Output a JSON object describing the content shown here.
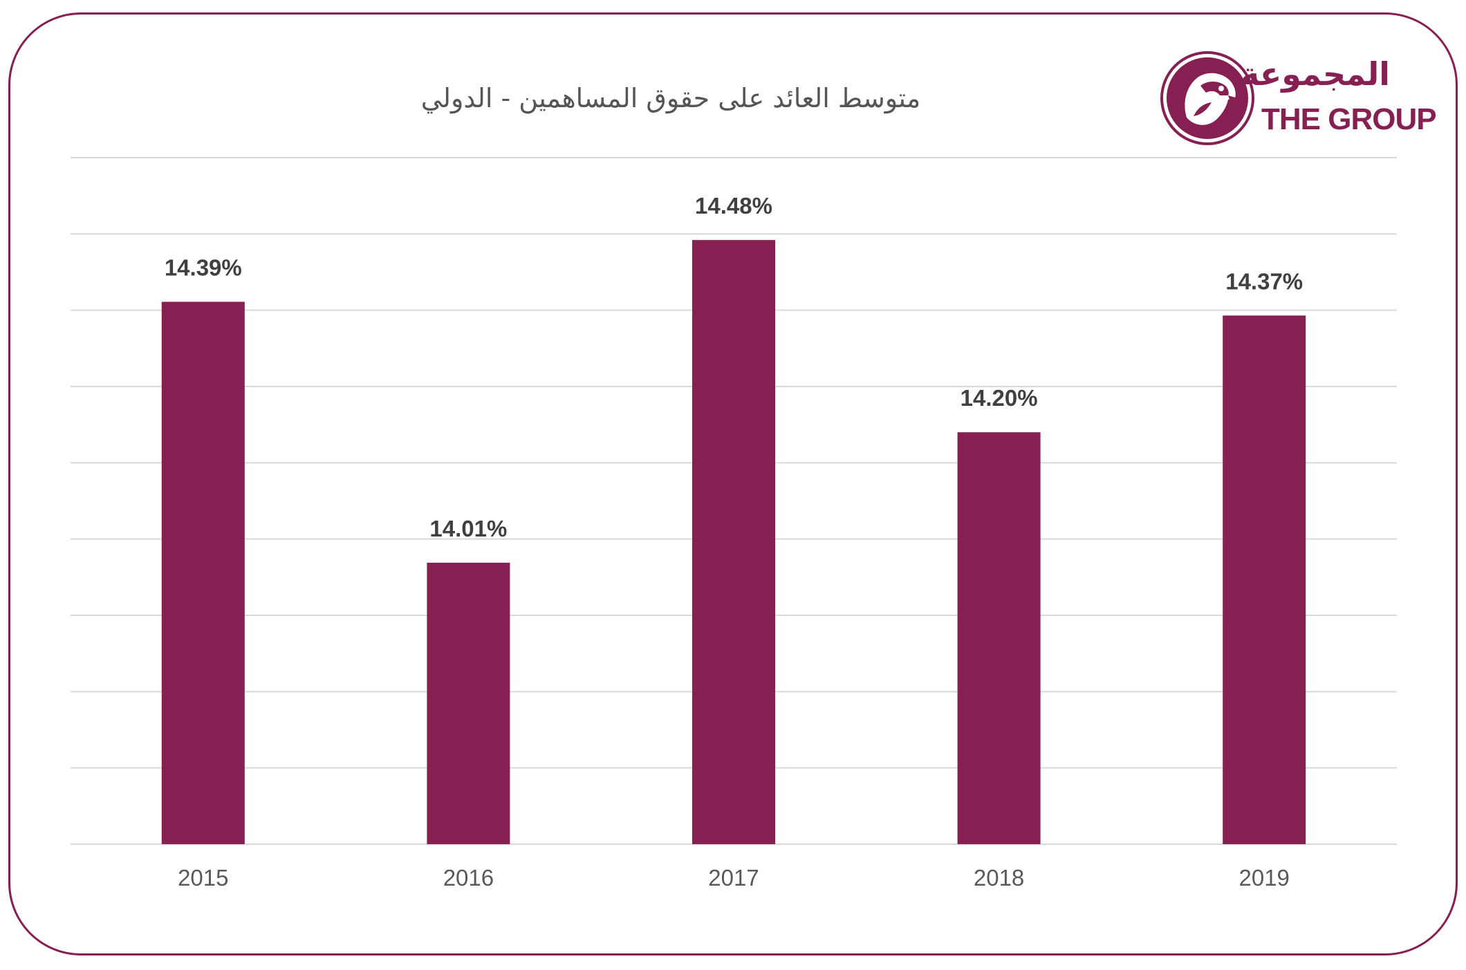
{
  "logo": {
    "arabic_text": "المجموعة",
    "english_text": "THE GROUP"
  },
  "colors": {
    "brand": "#861f52",
    "bar": "#861f52",
    "grid": "#d9d9d9",
    "label_text": "#404040"
  },
  "chart_data": {
    "type": "bar",
    "title": "متوسط العائد على حقوق المساهمين - الدولي",
    "xlabel": "",
    "ylabel": "",
    "categories": [
      "2015",
      "2016",
      "2017",
      "2018",
      "2019"
    ],
    "values": [
      14.39,
      14.01,
      14.48,
      14.2,
      14.37
    ],
    "value_labels": [
      "14.39%",
      "14.01%",
      "14.48%",
      "14.20%",
      "14.37%"
    ],
    "ylim": [
      13.6,
      14.6
    ],
    "grid": true,
    "legend": "none"
  }
}
